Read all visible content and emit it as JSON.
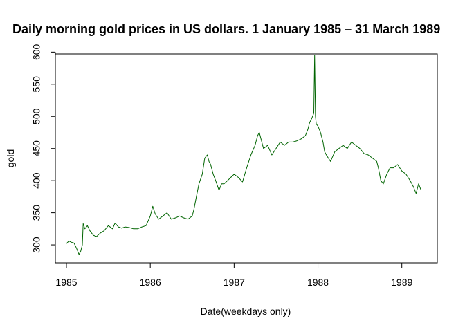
{
  "chart_data": {
    "type": "line",
    "title": "Daily morning gold prices in US dollars. 1 January 1985 – 31 March 1989",
    "xlabel": "Date(weekdays only)",
    "ylabel": "gold",
    "xlim": [
      1985.0,
      1989.25
    ],
    "ylim": [
      285,
      595
    ],
    "x_ticks": [
      1985,
      1986,
      1987,
      1988,
      1989
    ],
    "x_tick_labels": [
      "1985",
      "1986",
      "1987",
      "1988",
      "1989"
    ],
    "y_ticks": [
      300,
      350,
      400,
      450,
      500,
      550,
      600
    ],
    "y_tick_labels": [
      "300",
      "350",
      "400",
      "450",
      "500",
      "550",
      "600"
    ],
    "grid": false,
    "legend": "none",
    "line_color": "#006400",
    "series": [
      {
        "x": [
          1985.0,
          1985.03,
          1985.06,
          1985.09,
          1985.12,
          1985.15,
          1985.17,
          1985.19,
          1985.2,
          1985.22,
          1985.25,
          1985.28,
          1985.32,
          1985.36,
          1985.4,
          1985.45,
          1985.5,
          1985.55,
          1985.58,
          1985.62,
          1985.66,
          1985.7,
          1985.75,
          1985.8,
          1985.85,
          1985.9,
          1985.95,
          1986.0,
          1986.03,
          1986.06,
          1986.1,
          1986.15,
          1986.2,
          1986.25,
          1986.3,
          1986.35,
          1986.4,
          1986.45,
          1986.5,
          1986.52,
          1986.55,
          1986.58,
          1986.62,
          1986.65,
          1986.68,
          1986.7,
          1986.72,
          1986.75,
          1986.78,
          1986.82,
          1986.85,
          1986.88,
          1986.92,
          1986.96,
          1987.0,
          1987.05,
          1987.1,
          1987.15,
          1987.2,
          1987.25,
          1987.28,
          1987.3,
          1987.35,
          1987.4,
          1987.45,
          1987.5,
          1987.55,
          1987.6,
          1987.65,
          1987.7,
          1987.75,
          1987.8,
          1987.85,
          1987.88,
          1987.9,
          1987.93,
          1987.95,
          1987.96,
          1987.97,
          1987.98,
          1988.0,
          1988.03,
          1988.06,
          1988.08,
          1988.1,
          1988.15,
          1988.2,
          1988.25,
          1988.3,
          1988.35,
          1988.4,
          1988.45,
          1988.5,
          1988.55,
          1988.6,
          1988.65,
          1988.7,
          1988.72,
          1988.75,
          1988.78,
          1988.82,
          1988.86,
          1988.9,
          1988.95,
          1989.0,
          1989.05,
          1989.1,
          1989.14,
          1989.17,
          1989.2,
          1989.23
        ],
        "y": [
          302,
          306,
          304,
          303,
          295,
          285,
          290,
          300,
          333,
          325,
          330,
          322,
          315,
          313,
          318,
          322,
          330,
          325,
          334,
          328,
          326,
          328,
          327,
          325,
          325,
          328,
          330,
          345,
          360,
          348,
          340,
          345,
          350,
          340,
          342,
          345,
          342,
          340,
          345,
          355,
          375,
          395,
          410,
          435,
          440,
          430,
          425,
          410,
          400,
          385,
          395,
          395,
          400,
          405,
          410,
          405,
          398,
          420,
          440,
          455,
          470,
          475,
          450,
          455,
          440,
          450,
          460,
          455,
          460,
          460,
          462,
          465,
          470,
          480,
          490,
          498,
          505,
          595,
          500,
          488,
          485,
          475,
          460,
          445,
          440,
          430,
          445,
          450,
          455,
          450,
          460,
          455,
          450,
          442,
          440,
          435,
          430,
          420,
          400,
          395,
          410,
          420,
          420,
          425,
          415,
          410,
          400,
          390,
          380,
          395,
          385
        ]
      }
    ]
  }
}
